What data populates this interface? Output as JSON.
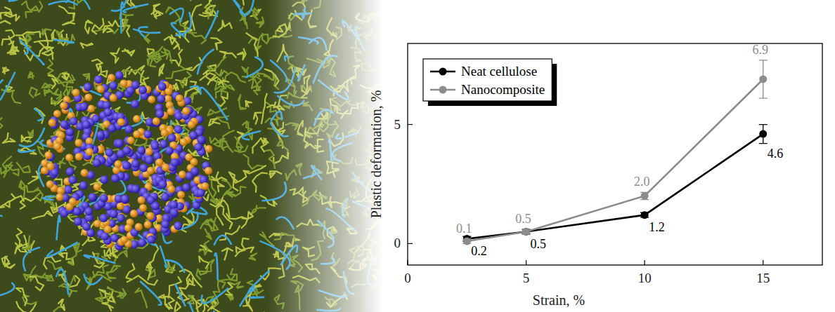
{
  "chart_data": {
    "type": "line",
    "xlabel": "Strain, %",
    "ylabel": "Plastic deformation, %",
    "x": [
      2.5,
      5,
      10,
      15
    ],
    "xlim": [
      0,
      17.5
    ],
    "ylim": [
      -0.9,
      8.4
    ],
    "xticks": [
      0,
      5,
      10,
      15
    ],
    "yticks": [
      0,
      5
    ],
    "legend": "upper left",
    "data_labels": true,
    "series": [
      {
        "name": "Neat cellulose",
        "color": "#000000",
        "marker": "circle",
        "values": [
          0.2,
          0.5,
          1.2,
          4.6
        ],
        "value_labels": [
          "0.2",
          "0.5",
          "1.2",
          "4.6"
        ],
        "errors": [
          0.1,
          0.1,
          0.1,
          0.4
        ]
      },
      {
        "name": "Nanocomposite",
        "color": "#8c8c8c",
        "marker": "circle",
        "values": [
          0.1,
          0.5,
          2.0,
          6.9
        ],
        "value_labels": [
          "0.1",
          "0.5",
          "2.0",
          "6.9"
        ],
        "errors": [
          0.1,
          0.1,
          0.15,
          0.8
        ]
      }
    ]
  }
}
